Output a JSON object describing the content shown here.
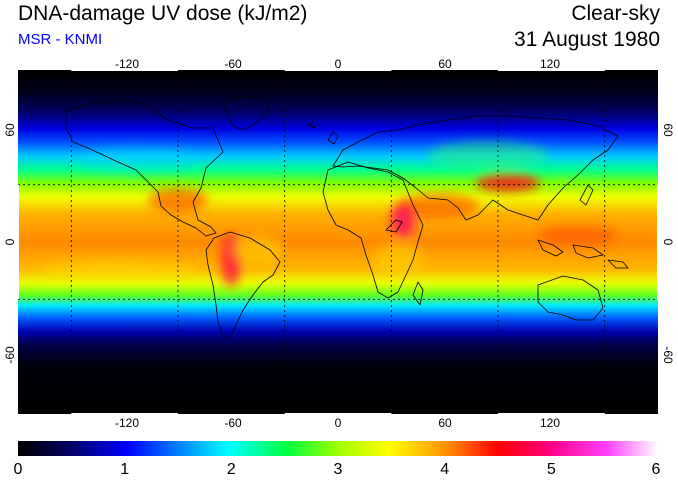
{
  "header": {
    "title": "DNA-damage UV dose (kJ/m2)",
    "subtitle": "MSR - KNMI",
    "sky_condition": "Clear-sky",
    "date": "31 August 1980"
  },
  "colors": {
    "title": "#000000",
    "subtitle": "#0000ff",
    "dose_scale": [
      "#000000",
      "#000060",
      "#0000ff",
      "#0080ff",
      "#00ffff",
      "#00ff40",
      "#a0ff00",
      "#ffff00",
      "#ff9000",
      "#ff0000",
      "#ff0080",
      "#ff40ff",
      "#ffffff"
    ]
  },
  "map": {
    "projection": "equirectangular",
    "lon_range": [
      -180,
      180
    ],
    "lat_range": [
      -90,
      90
    ],
    "graticule_lon": [
      -150,
      -90,
      -30,
      30,
      90,
      150
    ],
    "graticule_lat": [
      -30,
      30
    ],
    "lon_labels_top": [
      "-120",
      "-60",
      "0",
      "60",
      "120"
    ],
    "lon_labels_bottom": [
      "-120",
      "-60",
      "0",
      "60",
      "120"
    ],
    "lat_labels_left": [
      "60",
      "0",
      "-60"
    ],
    "lat_labels_right": [
      "60",
      "0",
      "-60"
    ]
  },
  "colorbar": {
    "unit": "kJ/m2",
    "min": 0,
    "max": 6,
    "tick_labels": [
      "0",
      "1",
      "2",
      "3",
      "4",
      "5",
      "6"
    ]
  }
}
